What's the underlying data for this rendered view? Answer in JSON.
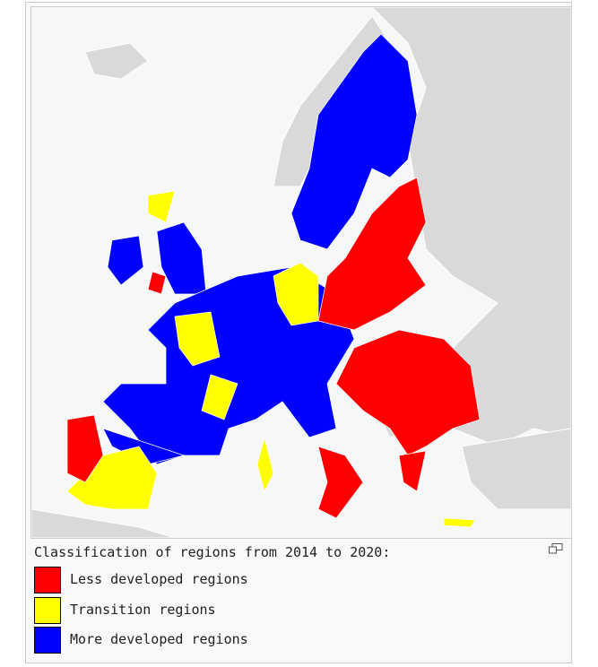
{
  "caption": "Classification of regions from 2014 to 2020:",
  "legend": [
    {
      "label": "Less developed regions",
      "color": "#ff0000"
    },
    {
      "label": "Transition regions",
      "color": "#ffff00"
    },
    {
      "label": "More developed regions",
      "color": "#0000ff"
    }
  ]
}
